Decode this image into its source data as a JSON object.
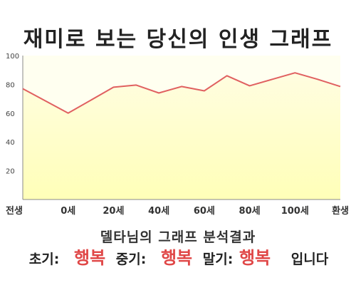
{
  "title": "재미로 보는 당신의 인생 그래프",
  "summary": "델타님의 그래프 분석결과",
  "result": {
    "early_label": "초기:",
    "early_value": "행복",
    "middle_label": "중기:",
    "middle_value": "행복",
    "late_label": "말기:",
    "late_value": "행복",
    "suffix": "입니다"
  },
  "chart_data": {
    "type": "area",
    "title": "",
    "xlabel": "",
    "ylabel": "",
    "x_tick_labels": [
      "전생",
      "0세",
      "20세",
      "40세",
      "60세",
      "80세",
      "100세",
      "환생"
    ],
    "y_ticks": [
      20,
      40,
      60,
      80,
      100
    ],
    "ylim": [
      0,
      100
    ],
    "grid": false,
    "series": [
      {
        "x": [
          0,
          1,
          2,
          2.5,
          3,
          3.5,
          4,
          4.5,
          5,
          5.5,
          6,
          6.5,
          7
        ],
        "values": [
          77,
          60,
          78,
          79.5,
          74,
          78.5,
          75.5,
          86,
          79,
          83.5,
          88,
          83.5,
          78.5
        ]
      }
    ],
    "colors": {
      "fill": "#ffffc0",
      "fill_light": "#fffff0",
      "line": "#e06060",
      "axis": "#888888"
    }
  }
}
